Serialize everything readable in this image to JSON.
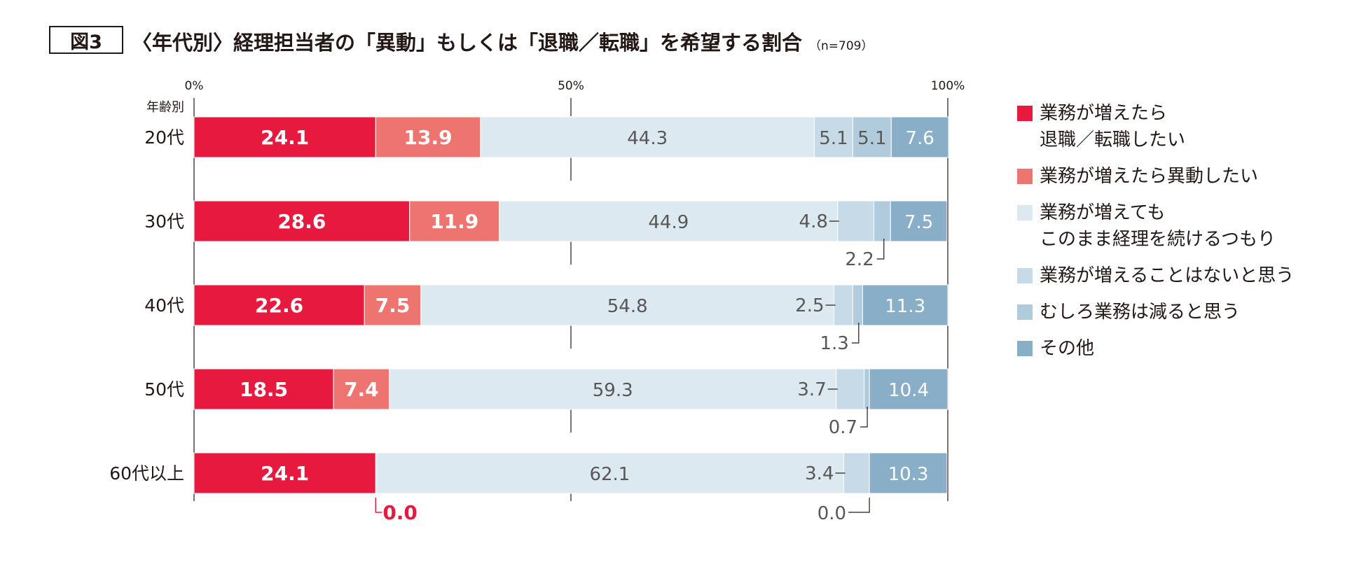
{
  "figure_label": "図3",
  "title": "〈年代別〉経理担当者の「異動」もしくは「退職／転職」を希望する割合",
  "sample_size": "（n=709）",
  "chart_data": {
    "type": "bar",
    "orientation": "horizontal",
    "stacked": true,
    "y_axis_title": "年齢別",
    "categories": [
      "20代",
      "30代",
      "40代",
      "50代",
      "60代以上"
    ],
    "x_ticks": [
      "0%",
      "50%",
      "100%"
    ],
    "xlim": [
      0,
      100
    ],
    "series": [
      {
        "name": "業務が増えたら\n退職／転職したい",
        "color": "#e8193f",
        "values": [
          24.1,
          28.6,
          22.6,
          18.5,
          24.1
        ],
        "labels": [
          "24.1",
          "28.6",
          "22.6",
          "18.5",
          "24.1"
        ]
      },
      {
        "name": "業務が増えたら異動したい",
        "color": "#ee7470",
        "values": [
          13.9,
          11.9,
          7.5,
          7.4,
          0.0
        ],
        "labels": [
          "13.9",
          "11.9",
          "7.5",
          "7.4",
          "0.0"
        ]
      },
      {
        "name": "業務が増えても\nこのまま経理を続けるつもり",
        "color": "#dde9f1",
        "values": [
          44.3,
          44.9,
          54.8,
          59.3,
          62.1
        ],
        "labels": [
          "44.3",
          "44.9",
          "54.8",
          "59.3",
          "62.1"
        ]
      },
      {
        "name": "業務が増えることはないと思う",
        "color": "#c6dae7",
        "values": [
          5.1,
          4.8,
          2.5,
          3.7,
          3.4
        ],
        "labels": [
          "5.1",
          "4.8",
          "2.5",
          "3.7",
          "3.4"
        ]
      },
      {
        "name": "むしろ業務は減ると思う",
        "color": "#b0cbdc",
        "values": [
          5.1,
          2.2,
          1.3,
          0.7,
          0.0
        ],
        "labels": [
          "5.1",
          "2.2",
          "1.3",
          "0.7",
          "0.0"
        ]
      },
      {
        "name": "その他",
        "color": "#88afc7",
        "values": [
          7.6,
          7.5,
          11.3,
          10.4,
          10.3
        ],
        "labels": [
          "7.6",
          "7.5",
          "11.3",
          "10.4",
          "10.3"
        ]
      }
    ]
  }
}
